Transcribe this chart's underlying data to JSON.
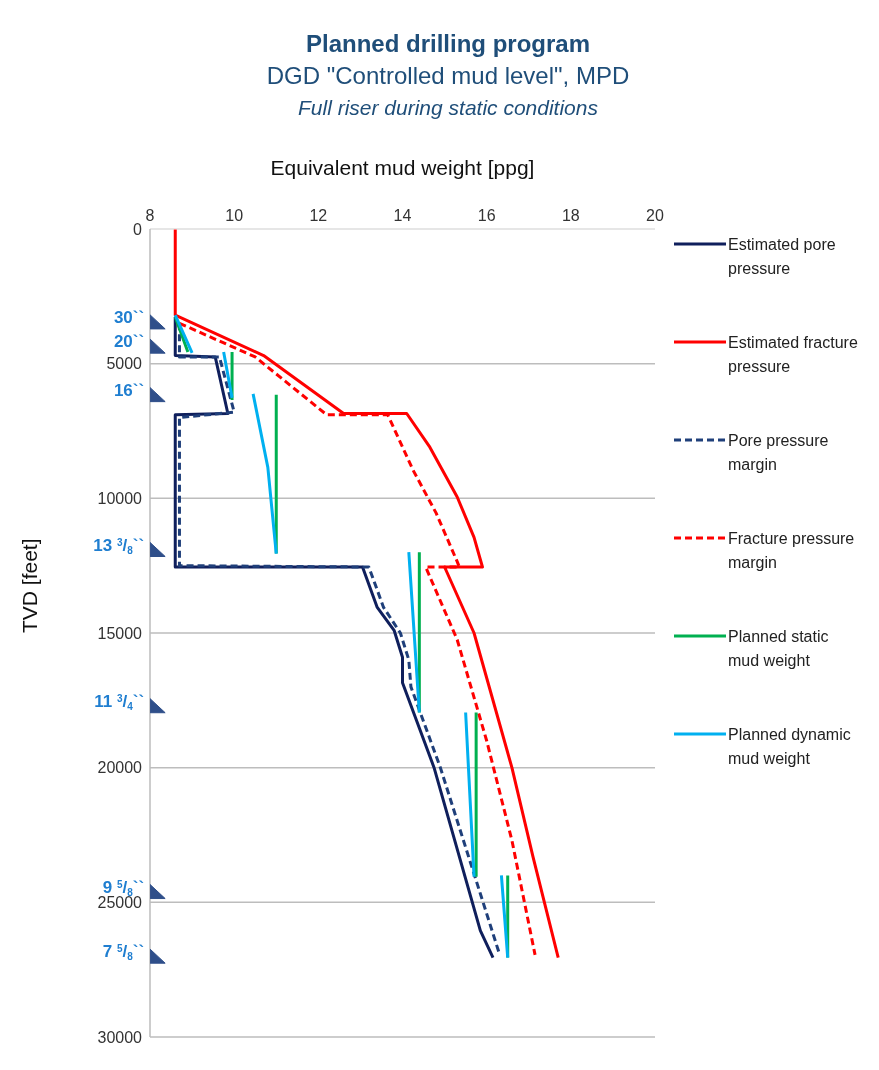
{
  "chart_data": {
    "type": "line",
    "title": "Planned drilling program",
    "subtitle": "DGD \"Controlled mud level\", MPD",
    "xlabel": "Equivalent mud weight [ppg]",
    "ylabel": "TVD [feet]",
    "xlim": [
      8,
      20
    ],
    "xticks": [
      8,
      10,
      12,
      14,
      16,
      18,
      20
    ],
    "ylim": [
      30000,
      0
    ],
    "yticks": [
      0,
      5000,
      10000,
      15000,
      20000,
      25000,
      30000
    ],
    "grid": "y",
    "legend": "right",
    "marker": "none",
    "series": [
      {
        "name": "Estimated pore pressure",
        "color": "#0f1f5c",
        "line_style": "solid",
        "x": [
          8.6,
          8.6,
          9.55,
          9.85,
          8.6,
          8.6,
          13.05,
          13.4,
          13.8,
          14.0,
          14.0,
          14.75,
          15.85,
          16.15
        ],
        "values": [
          3270,
          4700,
          4750,
          6850,
          6900,
          12550,
          12550,
          14050,
          14900,
          15900,
          16850,
          20000,
          26050,
          27050
        ]
      },
      {
        "name": "Estimated fracture pressure",
        "color": "#ff0000",
        "line_style": "solid",
        "x": [
          8.6,
          8.6,
          10.7,
          12.6,
          14.1,
          14.65,
          15.3,
          15.7,
          15.9,
          15.0,
          15.7,
          16.6,
          17.1,
          17.7
        ],
        "values": [
          0,
          3200,
          4700,
          6850,
          6850,
          8100,
          9950,
          11450,
          12550,
          12550,
          15000,
          20000,
          23300,
          27050
        ]
      },
      {
        "name": "Pore pressure margin",
        "color": "#1f3f7a",
        "line_style": "dashed",
        "x": [
          8.7,
          8.7,
          9.65,
          10.0,
          8.7,
          8.7,
          13.2,
          13.55,
          13.95,
          14.15,
          14.2,
          14.9,
          16.3
        ],
        "values": [
          3500,
          4750,
          4750,
          6800,
          7000,
          12500,
          12550,
          14050,
          15000,
          16000,
          17000,
          20000,
          26900
        ]
      },
      {
        "name": "Fracture pressure margin",
        "color": "#ff0000",
        "line_style": "dashed",
        "x": [
          8.7,
          10.5,
          12.2,
          13.65,
          14.25,
          14.8,
          15.3,
          15.35,
          14.55,
          15.3,
          16.0,
          16.6,
          17.15
        ],
        "values": [
          3500,
          4750,
          6900,
          6900,
          8950,
          10550,
          12350,
          12550,
          12550,
          15250,
          19000,
          22700,
          26950
        ]
      },
      {
        "name": "Planned static mud weight",
        "color": "#00b050",
        "line_style": "solid",
        "x": [
          8.6,
          8.9,
          null,
          9.95,
          9.95,
          null,
          11.0,
          11.0,
          null,
          14.4,
          14.4,
          null,
          15.75,
          15.75,
          null,
          16.5,
          16.5
        ],
        "values": [
          3270,
          4570,
          null,
          4570,
          6350,
          null,
          6150,
          12050,
          null,
          12000,
          17950,
          null,
          17950,
          24050,
          null,
          24000,
          27050
        ]
      },
      {
        "name": "Planned dynamic mud weight",
        "color": "#00b0f0",
        "line_style": "solid",
        "x": [
          8.6,
          9.0,
          null,
          9.75,
          9.95,
          null,
          10.45,
          10.8,
          11.0,
          null,
          14.15,
          14.4,
          null,
          15.5,
          15.7,
          null,
          16.35,
          16.5
        ],
        "values": [
          3200,
          4600,
          null,
          4570,
          6270,
          null,
          6120,
          8850,
          12050,
          null,
          12000,
          17950,
          null,
          17950,
          24050,
          null,
          24000,
          27050
        ]
      },
      {
        "type": "scatter",
        "color": "#2f4f8a",
        "marker": "triangle",
        "x": [
          8.17,
          8.17,
          8.17,
          8.17,
          8.17,
          8.17,
          8.17
        ],
        "values": [
          3450,
          4350,
          6150,
          11900,
          17700,
          24600,
          27000
        ]
      }
    ],
    "annotations": [
      "Full riser during static conditions",
      "30``",
      "20``",
      "16``",
      "13 $^{3}$/$_{8}$``",
      "11 $^{3}$/$_{4}$``",
      "9 $^{5}$/$_{8}$``",
      "7 $^{5}$/$_{8}$``"
    ]
  }
}
